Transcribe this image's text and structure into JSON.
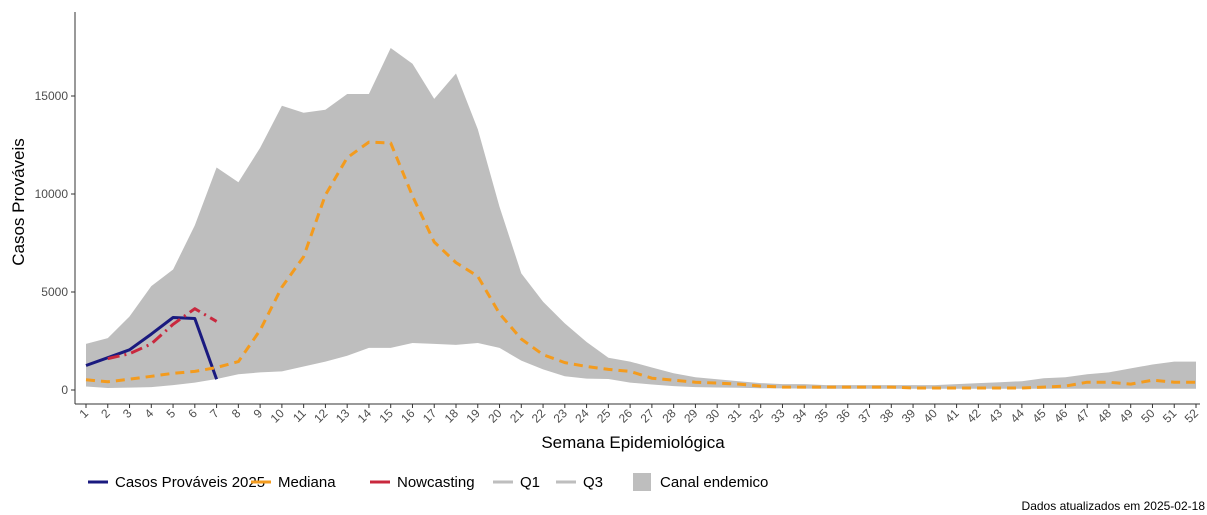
{
  "chart_data": {
    "type": "line",
    "xlabel": "Semana Epidemiológica",
    "ylabel": "Casos Prováveis",
    "ylim": [
      0,
      18000
    ],
    "yticks": [
      0,
      5000,
      10000,
      15000
    ],
    "x": [
      1,
      2,
      3,
      4,
      5,
      6,
      7,
      8,
      9,
      10,
      11,
      12,
      13,
      14,
      15,
      16,
      17,
      18,
      19,
      20,
      21,
      22,
      23,
      24,
      25,
      26,
      27,
      28,
      29,
      30,
      31,
      32,
      33,
      34,
      35,
      36,
      37,
      38,
      39,
      40,
      41,
      42,
      43,
      44,
      45,
      46,
      47,
      48,
      49,
      50,
      51,
      52
    ],
    "grid": false,
    "legend_position": "bottom",
    "band": {
      "name": "Canal endemico",
      "color": "#bebebe",
      "q1": [
        180,
        100,
        120,
        150,
        250,
        380,
        560,
        800,
        900,
        950,
        1200,
        1450,
        1750,
        2150,
        2150,
        2400,
        2350,
        2300,
        2400,
        2150,
        1500,
        1050,
        700,
        580,
        560,
        380,
        280,
        200,
        150,
        130,
        110,
        90,
        80,
        70,
        60,
        60,
        60,
        60,
        60,
        60,
        60,
        60,
        60,
        60,
        60,
        60,
        60,
        60,
        60,
        60,
        60,
        60
      ],
      "q3": [
        2350,
        2650,
        3750,
        5300,
        6150,
        8400,
        11350,
        10600,
        12350,
        14500,
        14150,
        14300,
        15100,
        15100,
        17450,
        16650,
        14850,
        16150,
        13300,
        9350,
        5950,
        4500,
        3400,
        2450,
        1650,
        1450,
        1150,
        850,
        650,
        550,
        450,
        350,
        300,
        300,
        250,
        250,
        250,
        250,
        250,
        250,
        300,
        350,
        400,
        450,
        600,
        650,
        800,
        900,
        1100,
        1300,
        1450,
        1450
      ]
    },
    "series": [
      {
        "name": "Casos Prováveis 2025",
        "color": "#1a1a7f",
        "dash": "solid",
        "x": [
          1,
          2,
          3,
          4,
          5,
          6,
          7
        ],
        "values": [
          1250,
          1650,
          2050,
          2850,
          3700,
          3650,
          550
        ]
      },
      {
        "name": "Mediana",
        "color": "#f39b1e",
        "dash": "dash",
        "x": [
          1,
          2,
          3,
          4,
          5,
          6,
          7,
          8,
          9,
          10,
          11,
          12,
          13,
          14,
          15,
          16,
          17,
          18,
          19,
          20,
          21,
          22,
          23,
          24,
          25,
          26,
          27,
          28,
          29,
          30,
          31,
          32,
          33,
          34,
          35,
          36,
          37,
          38,
          39,
          40,
          41,
          42,
          43,
          44,
          45,
          46,
          47,
          48,
          49,
          50,
          51,
          52
        ],
        "values": [
          520,
          420,
          550,
          700,
          850,
          950,
          1150,
          1450,
          3050,
          5250,
          6800,
          9950,
          11850,
          12650,
          12600,
          9900,
          7550,
          6500,
          5800,
          3900,
          2600,
          1800,
          1400,
          1200,
          1050,
          950,
          600,
          500,
          400,
          350,
          300,
          200,
          150,
          150,
          150,
          150,
          150,
          150,
          100,
          100,
          100,
          100,
          100,
          100,
          150,
          200,
          400,
          400,
          300,
          500,
          400,
          400
        ]
      },
      {
        "name": "Nowcasting",
        "color": "#c9283e",
        "dash": "dashdot",
        "x": [
          2,
          3,
          4,
          5,
          6,
          7
        ],
        "values": [
          1600,
          1850,
          2350,
          3350,
          4150,
          3500
        ]
      }
    ],
    "legend": [
      {
        "label": "Casos Prováveis 2025",
        "kind": "line",
        "color": "#1a1a7f"
      },
      {
        "label": "Mediana",
        "kind": "line",
        "color": "#f39b1e"
      },
      {
        "label": "Nowcasting",
        "kind": "line",
        "color": "#c9283e"
      },
      {
        "label": "Q1",
        "kind": "line",
        "color": "#bebebe"
      },
      {
        "label": "Q3",
        "kind": "line",
        "color": "#bebebe"
      },
      {
        "label": "Canal endemico",
        "kind": "fill",
        "color": "#bebebe"
      }
    ],
    "caption": "Dados atualizados em 2025-02-18"
  }
}
